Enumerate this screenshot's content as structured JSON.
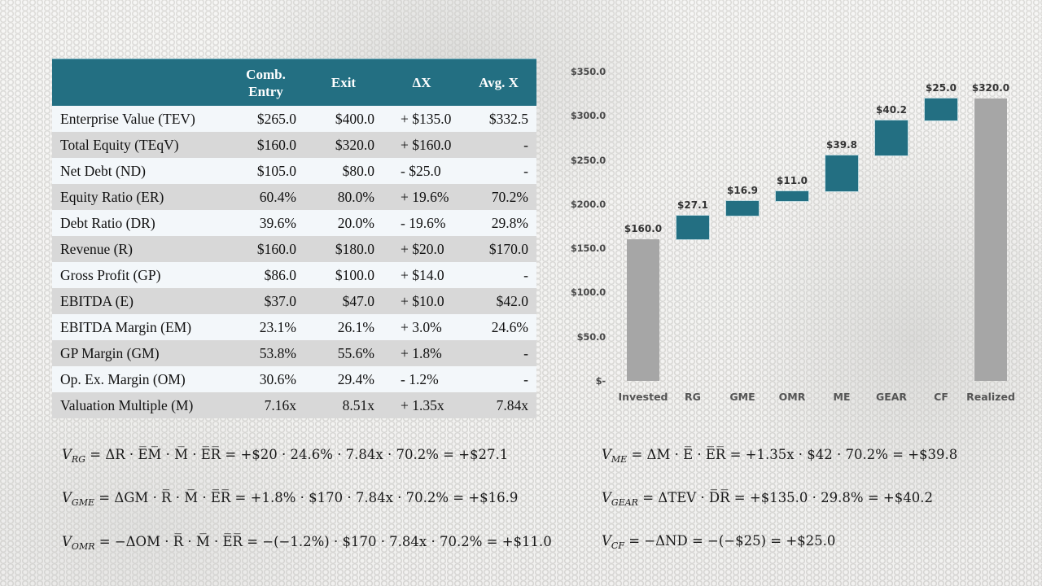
{
  "table": {
    "headers": [
      "",
      "Comb.\nEntry",
      "Exit",
      "ΔX",
      "Avg. X"
    ],
    "header_lines": {
      "comb_1": "Comb.",
      "comb_2": "Entry",
      "exit": "Exit",
      "delta": "ΔX",
      "avg": "Avg. X"
    },
    "rows": [
      {
        "label": "Enterprise Value (TEV)",
        "entry": "$265.0",
        "exit": "$400.0",
        "delta": "+ $135.0",
        "avg": "$332.5"
      },
      {
        "label": "Total Equity (TEqV)",
        "entry": "$160.0",
        "exit": "$320.0",
        "delta": "+ $160.0",
        "avg": "-"
      },
      {
        "label": "Net Debt (ND)",
        "entry": "$105.0",
        "exit": "$80.0",
        "delta": "- $25.0",
        "avg": "-"
      },
      {
        "label": "Equity Ratio (ER)",
        "entry": "60.4%",
        "exit": "80.0%",
        "delta": "+ 19.6%",
        "avg": "70.2%"
      },
      {
        "label": "Debt Ratio (DR)",
        "entry": "39.6%",
        "exit": "20.0%",
        "delta": "- 19.6%",
        "avg": "29.8%"
      },
      {
        "label": "Revenue (R)",
        "entry": "$160.0",
        "exit": "$180.0",
        "delta": "+ $20.0",
        "avg": "$170.0"
      },
      {
        "label": "Gross Profit (GP)",
        "entry": "$86.0",
        "exit": "$100.0",
        "delta": "+ $14.0",
        "avg": "-"
      },
      {
        "label": "EBITDA (E)",
        "entry": "$37.0",
        "exit": "$47.0",
        "delta": "+ $10.0",
        "avg": "$42.0"
      },
      {
        "label": "EBITDA Margin (EM)",
        "entry": "23.1%",
        "exit": "26.1%",
        "delta": "+ 3.0%",
        "avg": "24.6%"
      },
      {
        "label": "GP Margin (GM)",
        "entry": "53.8%",
        "exit": "55.6%",
        "delta": "+ 1.8%",
        "avg": "-"
      },
      {
        "label": "Op. Ex. Margin (OM)",
        "entry": "30.6%",
        "exit": "29.4%",
        "delta": "- 1.2%",
        "avg": "-"
      },
      {
        "label": "Valuation Multiple (M)",
        "entry": "7.16x",
        "exit": "8.51x",
        "delta": "+ 1.35x",
        "avg": "7.84x"
      }
    ]
  },
  "chart_data": {
    "type": "bar",
    "subtype": "waterfall",
    "title": "",
    "xlabel": "",
    "ylabel": "",
    "categories": [
      "Invested",
      "RG",
      "GME",
      "OMR",
      "ME",
      "GEAR",
      "CF",
      "Realized"
    ],
    "values": [
      160.0,
      27.1,
      16.9,
      11.0,
      39.8,
      40.2,
      25.0,
      320.0
    ],
    "value_labels": [
      "$160.0",
      "$27.1",
      "$16.9",
      "$11.0",
      "$39.8",
      "$40.2",
      "$25.0",
      "$320.0"
    ],
    "bar_kinds": [
      "total",
      "delta",
      "delta",
      "delta",
      "delta",
      "delta",
      "delta",
      "total"
    ],
    "bases": [
      0,
      160.0,
      187.1,
      204.0,
      215.0,
      254.8,
      295.0,
      0
    ],
    "yticks": [
      "$-",
      "$50.0",
      "$100.0",
      "$150.0",
      "$200.0",
      "$250.0",
      "$300.0",
      "$350.0"
    ],
    "ytick_values": [
      0,
      50,
      100,
      150,
      200,
      250,
      300,
      350
    ],
    "ylim": [
      0,
      350
    ],
    "grid": false,
    "legend": "none",
    "colors": {
      "total": "#a6a6a6",
      "delta": "#236f82"
    }
  },
  "formulas": {
    "rg": {
      "sub": "RG",
      "expr": " = ΔR · E̅M̅ · M̅ · E̅R̅ = +$20 · 24.6% · 7.84x · 70.2% = +$27.1"
    },
    "gme": {
      "sub": "GME",
      "expr": " = ΔGM · R̅ · M̅ · E̅R̅ = +1.8% · $170 · 7.84x · 70.2% = +$16.9"
    },
    "omr": {
      "sub": "OMR",
      "expr": " = −ΔOM · R̅ · M̅ · E̅R̅ = −(−1.2%) · $170 · 7.84x · 70.2% = +$11.0"
    },
    "me": {
      "sub": "ME",
      "expr": " = ΔM · E̅ · E̅R̅ = +1.35x · $42 · 70.2% = +$39.8"
    },
    "gear": {
      "sub": "GEAR",
      "expr": " = ΔTEV · D̅R̅ = +$135.0 · 29.8% = +$40.2"
    },
    "cf": {
      "sub": "CF",
      "expr": " = −ΔND = −(−$25) = +$25.0"
    },
    "v": "V"
  }
}
